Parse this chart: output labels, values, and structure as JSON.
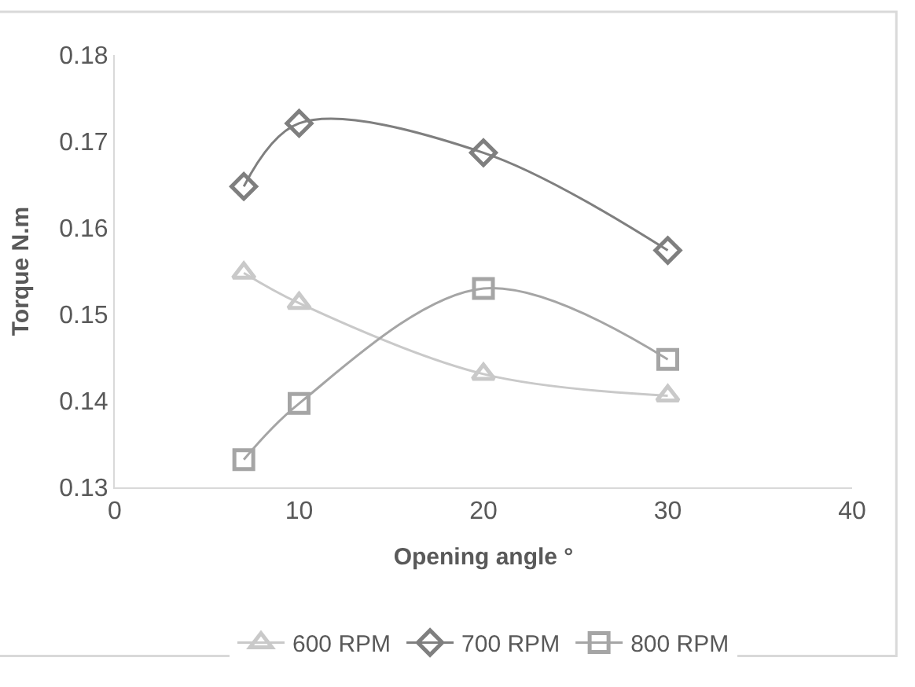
{
  "chart_data": {
    "type": "line",
    "xlabel": "Opening angle °",
    "ylabel": "Torque N.m",
    "x": [
      7,
      10,
      20,
      30
    ],
    "series": [
      {
        "name": "600 RPM",
        "color": "#c9c9c9",
        "marker": "triangle",
        "values": [
          0.1548,
          0.1513,
          0.1431,
          0.1406
        ]
      },
      {
        "name": "700 RPM",
        "color": "#7f7f7f",
        "marker": "diamond",
        "values": [
          0.1648,
          0.1721,
          0.1687,
          0.1574
        ]
      },
      {
        "name": "800 RPM",
        "color": "#a5a5a5",
        "marker": "square",
        "values": [
          0.1332,
          0.1397,
          0.153,
          0.1448
        ]
      }
    ],
    "xlim": [
      0,
      40
    ],
    "xticks": [
      0,
      10,
      20,
      30,
      40
    ],
    "ylim": [
      0.13,
      0.18
    ],
    "yticks": [
      0.13,
      0.14,
      0.15,
      0.16,
      0.17,
      0.18
    ],
    "grid": false,
    "legend": "bottom",
    "line_style": "solid"
  }
}
